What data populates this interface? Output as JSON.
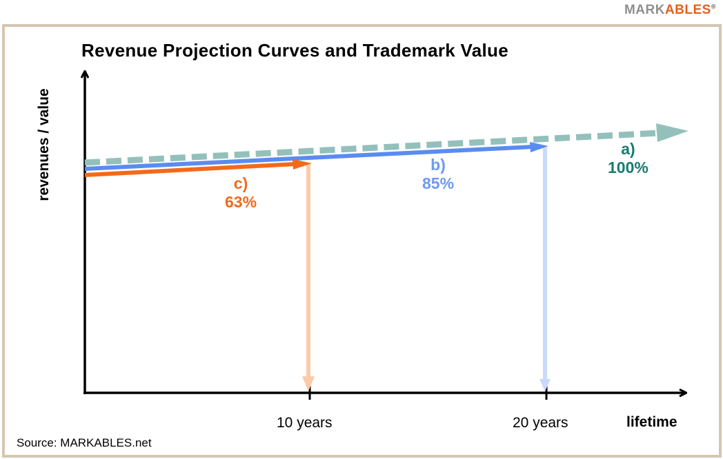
{
  "brand": {
    "part1": "MARK",
    "part2": "ABLES",
    "mark": "®"
  },
  "title": "Revenue Projection Curves and Trademark Value",
  "axes": {
    "ylabel": "revenues / value",
    "xlabel": "lifetime"
  },
  "ticks": [
    "10 years",
    "20 years"
  ],
  "curves": [
    {
      "letter": "a)",
      "percent": "100%",
      "color": "#94c0bc",
      "text_color": "#1a7a72"
    },
    {
      "letter": "b)",
      "percent": "85%",
      "color": "#5a8cf0",
      "text_color": "#6b9bf0"
    },
    {
      "letter": "c)",
      "percent": "63%",
      "color": "#f26a1b",
      "text_color": "#f26a1b"
    }
  ],
  "drop_line_colors": {
    "ten_years": "#f9cba8",
    "twenty_years": "#c9d9fb"
  },
  "source": "Source: MARKABLES.net"
}
